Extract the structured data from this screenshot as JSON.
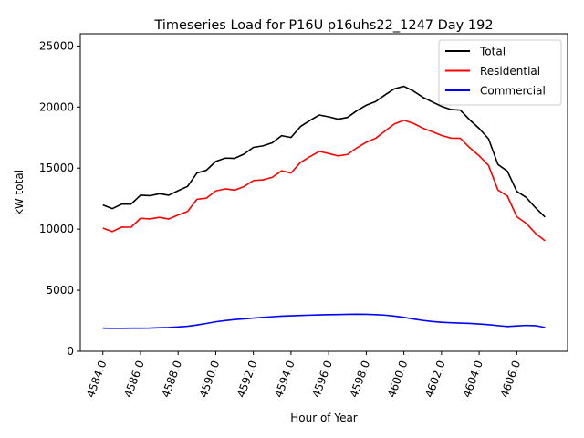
{
  "chart_data": {
    "type": "line",
    "title": "Timeseries Load for P16U p16uhs22_1247  Day 192",
    "xlabel": "Hour of Year",
    "ylabel": "kW total",
    "xlim": [
      4582.8,
      4608.7
    ],
    "ylim": [
      0,
      26000
    ],
    "grid": false,
    "legend_position": "top-right",
    "x_ticks": [
      4584,
      4586,
      4588,
      4590,
      4592,
      4594,
      4596,
      4598,
      4600,
      4602,
      4604,
      4606
    ],
    "x_tick_labels": [
      "4584.0",
      "4586.0",
      "4588.0",
      "4590.0",
      "4592.0",
      "4594.0",
      "4596.0",
      "4598.0",
      "4600.0",
      "4602.0",
      "4604.0",
      "4606.0"
    ],
    "y_ticks": [
      0,
      5000,
      10000,
      15000,
      20000,
      25000
    ],
    "y_tick_labels": [
      "0",
      "5000",
      "10000",
      "15000",
      "20000",
      "25000"
    ],
    "x": [
      4584,
      4584.5,
      4585,
      4585.5,
      4586,
      4586.5,
      4587,
      4587.5,
      4588,
      4588.5,
      4589,
      4589.5,
      4590,
      4590.5,
      4591,
      4591.5,
      4592,
      4592.5,
      4593,
      4593.5,
      4594,
      4594.5,
      4595,
      4595.5,
      4596,
      4596.5,
      4597,
      4597.5,
      4598,
      4598.5,
      4599,
      4599.5,
      4600,
      4600.5,
      4601,
      4601.5,
      4602,
      4602.5,
      4603,
      4603.5,
      4604,
      4604.5,
      4605,
      4605.5,
      4606,
      4606.5,
      4607,
      4607.5
    ],
    "series": [
      {
        "name": "Total",
        "color": "#000000",
        "values": [
          11980,
          11680,
          12050,
          12050,
          12780,
          12740,
          12900,
          12780,
          13150,
          13500,
          14600,
          14820,
          15550,
          15820,
          15800,
          16150,
          16700,
          16820,
          17070,
          17660,
          17510,
          18400,
          18900,
          19350,
          19200,
          19010,
          19150,
          19700,
          20150,
          20450,
          21000,
          21500,
          21700,
          21320,
          20810,
          20430,
          20060,
          19800,
          19750,
          18950,
          18250,
          17400,
          15300,
          14750,
          13100,
          12600,
          11750,
          11000
        ]
      },
      {
        "name": "Residential",
        "color": "#ff0000",
        "values": [
          10090,
          9800,
          10170,
          10160,
          10890,
          10840,
          10970,
          10830,
          11160,
          11450,
          12450,
          12540,
          13130,
          13300,
          13200,
          13490,
          13980,
          14040,
          14240,
          14780,
          14600,
          15460,
          15940,
          16370,
          16200,
          16000,
          16120,
          16660,
          17120,
          17450,
          18040,
          18620,
          18920,
          18670,
          18280,
          17990,
          17680,
          17460,
          17440,
          16670,
          16010,
          15220,
          13200,
          12720,
          11020,
          10480,
          9650,
          9050
        ]
      },
      {
        "name": "Commercial",
        "color": "#0000ff",
        "values": [
          1890,
          1880,
          1880,
          1890,
          1890,
          1900,
          1930,
          1950,
          1990,
          2050,
          2150,
          2280,
          2420,
          2520,
          2600,
          2660,
          2720,
          2780,
          2830,
          2880,
          2910,
          2940,
          2960,
          2980,
          3000,
          3010,
          3030,
          3040,
          3030,
          3000,
          2960,
          2880,
          2780,
          2650,
          2530,
          2440,
          2380,
          2340,
          2310,
          2280,
          2240,
          2180,
          2100,
          2030,
          2080,
          2120,
          2100,
          1950
        ]
      }
    ]
  }
}
